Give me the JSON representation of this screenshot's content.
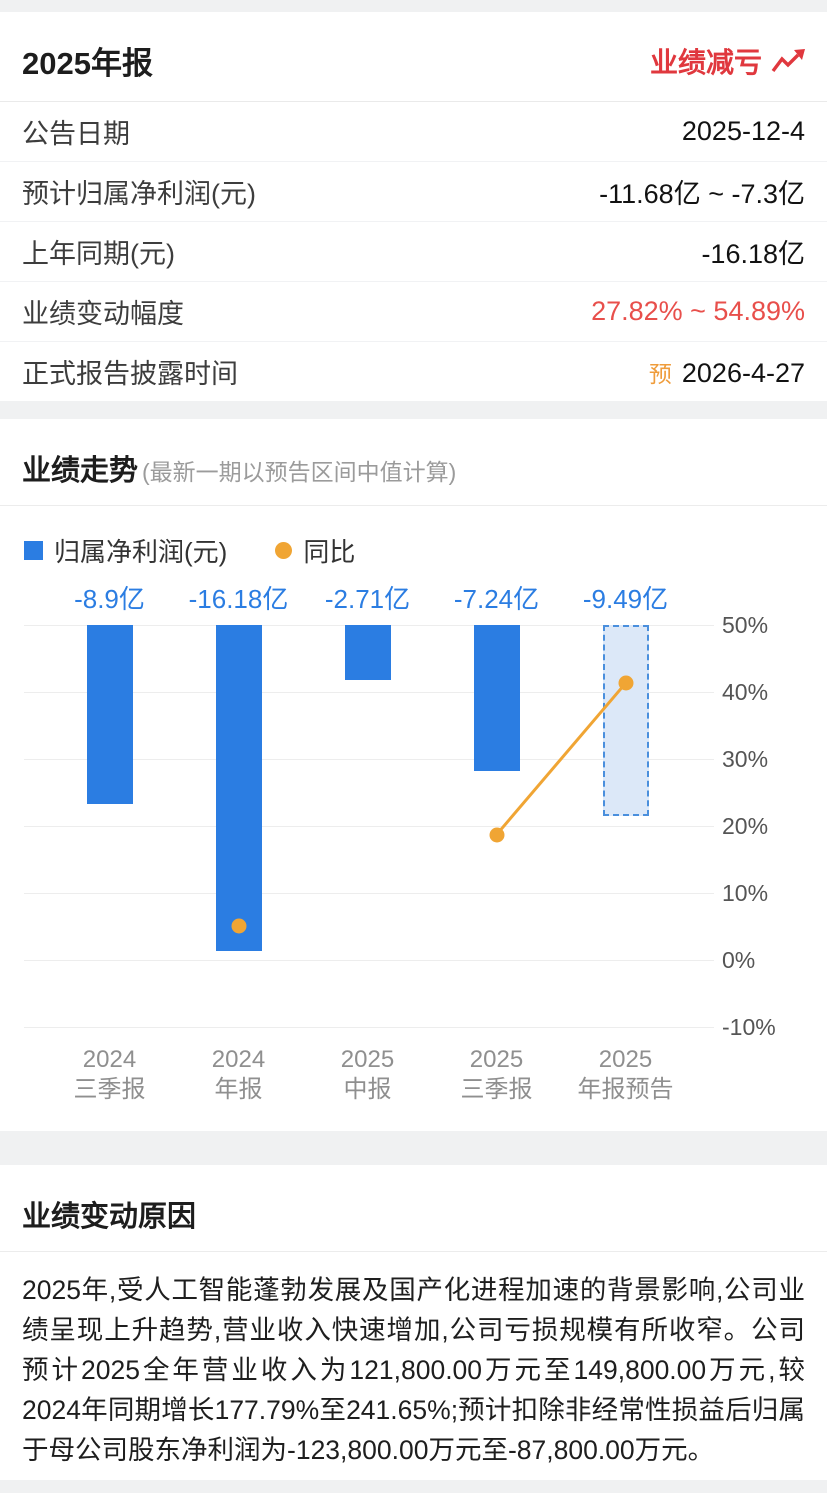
{
  "colors": {
    "accent_red": "#e0383e",
    "bar_blue": "#2b7de2",
    "line_orange": "#f0a534",
    "badge_orange": "#ef9c3b",
    "forecast_fill": "#dce8f8",
    "forecast_border": "#4a8fdd"
  },
  "header": {
    "title": "2025年报",
    "status": "业绩减亏",
    "status_icon": "trend-up-icon",
    "rows": [
      {
        "label": "公告日期",
        "value": "2025-12-4"
      },
      {
        "label": "预计归属净利润(元)",
        "value": "-11.68亿 ~ -7.3亿"
      },
      {
        "label": "上年同期(元)",
        "value": "-16.18亿"
      },
      {
        "label": "业绩变动幅度",
        "value": "27.82% ~ 54.89%",
        "highlight": "red"
      },
      {
        "label": "正式报告披露时间",
        "badge": "预",
        "value": "2026-4-27"
      }
    ]
  },
  "trend": {
    "title": "业绩走势",
    "subtitle": "(最新一期以预告区间中值计算)",
    "legend": [
      {
        "label": "归属净利润(元)",
        "marker": "square",
        "color": "#2b7de2"
      },
      {
        "label": "同比",
        "marker": "dot",
        "color": "#f0a534"
      }
    ]
  },
  "chart_data": {
    "type": "bar",
    "title": "业绩走势",
    "categories": [
      "2024三季报",
      "2024年报",
      "2025中报",
      "2025三季报",
      "2025年报预告"
    ],
    "category_lines": [
      [
        "2024",
        "三季报"
      ],
      [
        "2024",
        "年报"
      ],
      [
        "2025",
        "中报"
      ],
      [
        "2025",
        "三季报"
      ],
      [
        "2025",
        "年报预告"
      ]
    ],
    "series": [
      {
        "name": "归属净利润(元)",
        "type": "bar",
        "unit": "亿",
        "color": "#2b7de2",
        "values": [
          -8.9,
          -16.18,
          -2.71,
          -7.24,
          -9.49
        ],
        "labels": [
          "-8.9亿",
          "-16.18亿",
          "-2.71亿",
          "-7.24亿",
          "-9.49亿"
        ],
        "forecast_index": 4
      },
      {
        "name": "同比",
        "type": "line",
        "unit": "%",
        "color": "#f0a534",
        "values": [
          null,
          5.1,
          null,
          18.7,
          41.3
        ]
      }
    ],
    "y_axis_right": {
      "tick_labels": [
        "50%",
        "40%",
        "30%",
        "20%",
        "10%",
        "0%",
        "-10%"
      ],
      "tick_values": [
        50,
        40,
        30,
        20,
        10,
        0,
        -10
      ]
    },
    "grid": true,
    "legend_position": "top-left"
  },
  "reason": {
    "title": "业绩变动原因",
    "paragraph": "2025年,受人工智能蓬勃发展及国产化进程加速的背景影响,公司业绩呈现上升趋势,营业收入快速增加,公司亏损规模有所收窄。公司预计2025全年营业收入为121,800.00万元至149,800.00万元,较2024年同期增长177.79%至241.65%;预计扣除非经常性损益后归属于母公司股东净利润为-123,800.00万元至-87,800.00万元。"
  }
}
